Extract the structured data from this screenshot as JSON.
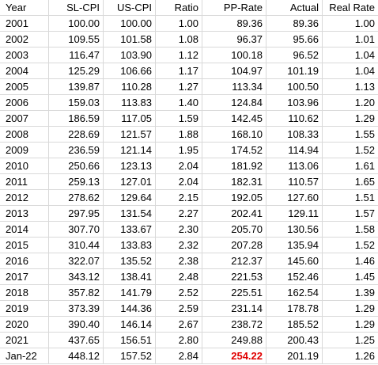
{
  "table": {
    "header": [
      "Year",
      "SL-CPI",
      "US-CPI",
      "Ratio",
      "PP-Rate",
      "Actual",
      "Real Rate"
    ],
    "rows": [
      [
        "2001",
        "100.00",
        "100.00",
        "1.00",
        "89.36",
        "89.36",
        "1.00"
      ],
      [
        "2002",
        "109.55",
        "101.58",
        "1.08",
        "96.37",
        "95.66",
        "1.01"
      ],
      [
        "2003",
        "116.47",
        "103.90",
        "1.12",
        "100.18",
        "96.52",
        "1.04"
      ],
      [
        "2004",
        "125.29",
        "106.66",
        "1.17",
        "104.97",
        "101.19",
        "1.04"
      ],
      [
        "2005",
        "139.87",
        "110.28",
        "1.27",
        "113.34",
        "100.50",
        "1.13"
      ],
      [
        "2006",
        "159.03",
        "113.83",
        "1.40",
        "124.84",
        "103.96",
        "1.20"
      ],
      [
        "2007",
        "186.59",
        "117.05",
        "1.59",
        "142.45",
        "110.62",
        "1.29"
      ],
      [
        "2008",
        "228.69",
        "121.57",
        "1.88",
        "168.10",
        "108.33",
        "1.55"
      ],
      [
        "2009",
        "236.59",
        "121.14",
        "1.95",
        "174.52",
        "114.94",
        "1.52"
      ],
      [
        "2010",
        "250.66",
        "123.13",
        "2.04",
        "181.92",
        "113.06",
        "1.61"
      ],
      [
        "2011",
        "259.13",
        "127.01",
        "2.04",
        "182.31",
        "110.57",
        "1.65"
      ],
      [
        "2012",
        "278.62",
        "129.64",
        "2.15",
        "192.05",
        "127.60",
        "1.51"
      ],
      [
        "2013",
        "297.95",
        "131.54",
        "2.27",
        "202.41",
        "129.11",
        "1.57"
      ],
      [
        "2014",
        "307.70",
        "133.67",
        "2.30",
        "205.70",
        "130.56",
        "1.58"
      ],
      [
        "2015",
        "310.44",
        "133.83",
        "2.32",
        "207.28",
        "135.94",
        "1.52"
      ],
      [
        "2016",
        "322.07",
        "135.52",
        "2.38",
        "212.37",
        "145.60",
        "1.46"
      ],
      [
        "2017",
        "343.12",
        "138.41",
        "2.48",
        "221.53",
        "152.46",
        "1.45"
      ],
      [
        "2018",
        "357.82",
        "141.79",
        "2.52",
        "225.51",
        "162.54",
        "1.39"
      ],
      [
        "2019",
        "373.39",
        "144.36",
        "2.59",
        "231.14",
        "178.78",
        "1.29"
      ],
      [
        "2020",
        "390.40",
        "146.14",
        "2.67",
        "238.72",
        "185.52",
        "1.29"
      ],
      [
        "2021",
        "437.65",
        "156.51",
        "2.80",
        "249.88",
        "200.43",
        "1.25"
      ],
      [
        "Jan-22",
        "448.12",
        "157.52",
        "2.84",
        "254.22",
        "201.19",
        "1.26"
      ]
    ]
  }
}
